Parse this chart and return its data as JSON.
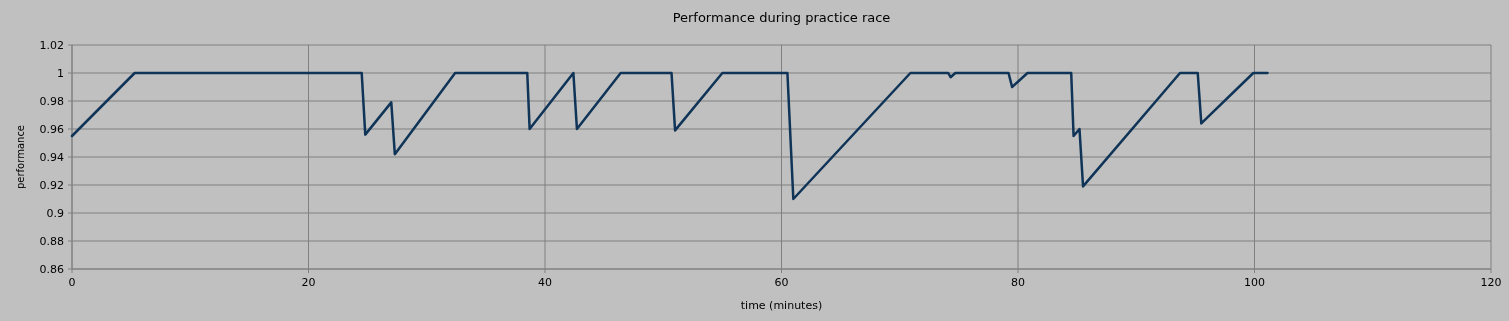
{
  "chart_data": {
    "type": "line",
    "title": "Performance during practice race",
    "xlabel": "time (minutes)",
    "ylabel": "performance",
    "xlim": [
      0,
      120
    ],
    "xticks": [
      0,
      20,
      40,
      60,
      80,
      100,
      120
    ],
    "ylim": [
      0.86,
      1.02
    ],
    "yticks": [
      0.86,
      0.88,
      0.9,
      0.92,
      0.94,
      0.96,
      0.98,
      1,
      1.02
    ],
    "grid": true,
    "marker": "none",
    "line_style": "solid",
    "series": [
      {
        "color": "#0f3457",
        "x": [
          0,
          5.3,
          24.5,
          24.8,
          27.0,
          27.3,
          32.4,
          38.5,
          38.7,
          42.4,
          42.7,
          46.4,
          50.7,
          51.0,
          55.0,
          60.5,
          61.0,
          70.9,
          74.1,
          74.3,
          74.7,
          79.2,
          79.5,
          80.8,
          84.5,
          84.7,
          85.2,
          85.5,
          93.7,
          95.2,
          95.5,
          99.9,
          101.1
        ],
        "values": [
          0.955,
          1,
          1,
          0.956,
          0.979,
          0.942,
          1,
          1,
          0.96,
          1,
          0.96,
          1,
          1,
          0.959,
          1,
          1,
          0.91,
          1,
          1,
          0.997,
          1,
          1,
          0.99,
          1,
          1,
          0.955,
          0.96,
          0.919,
          1,
          1,
          0.964,
          1,
          1
        ]
      }
    ]
  }
}
